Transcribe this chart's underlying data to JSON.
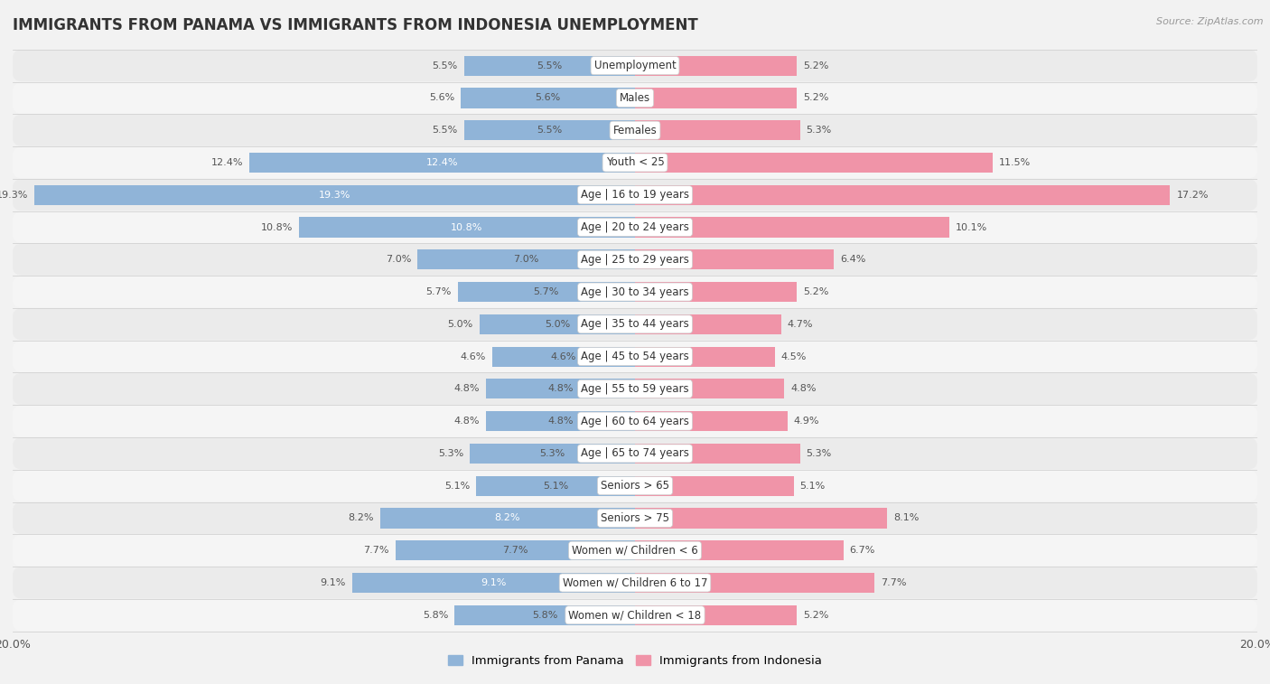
{
  "title": "IMMIGRANTS FROM PANAMA VS IMMIGRANTS FROM INDONESIA UNEMPLOYMENT",
  "source": "Source: ZipAtlas.com",
  "categories": [
    "Unemployment",
    "Males",
    "Females",
    "Youth < 25",
    "Age | 16 to 19 years",
    "Age | 20 to 24 years",
    "Age | 25 to 29 years",
    "Age | 30 to 34 years",
    "Age | 35 to 44 years",
    "Age | 45 to 54 years",
    "Age | 55 to 59 years",
    "Age | 60 to 64 years",
    "Age | 65 to 74 years",
    "Seniors > 65",
    "Seniors > 75",
    "Women w/ Children < 6",
    "Women w/ Children 6 to 17",
    "Women w/ Children < 18"
  ],
  "panama_values": [
    5.5,
    5.6,
    5.5,
    12.4,
    19.3,
    10.8,
    7.0,
    5.7,
    5.0,
    4.6,
    4.8,
    4.8,
    5.3,
    5.1,
    8.2,
    7.7,
    9.1,
    5.8
  ],
  "indonesia_values": [
    5.2,
    5.2,
    5.3,
    11.5,
    17.2,
    10.1,
    6.4,
    5.2,
    4.7,
    4.5,
    4.8,
    4.9,
    5.3,
    5.1,
    8.1,
    6.7,
    7.7,
    5.2
  ],
  "panama_color": "#90b4d8",
  "indonesia_color": "#f094a8",
  "row_color_even": "#ebebeb",
  "row_color_odd": "#f5f5f5",
  "background_color": "#f2f2f2",
  "xlim": 20.0,
  "legend_panama": "Immigrants from Panama",
  "legend_indonesia": "Immigrants from Indonesia",
  "axis_label": "20.0%",
  "title_fontsize": 12,
  "label_fontsize": 8.5,
  "value_fontsize": 8.0
}
